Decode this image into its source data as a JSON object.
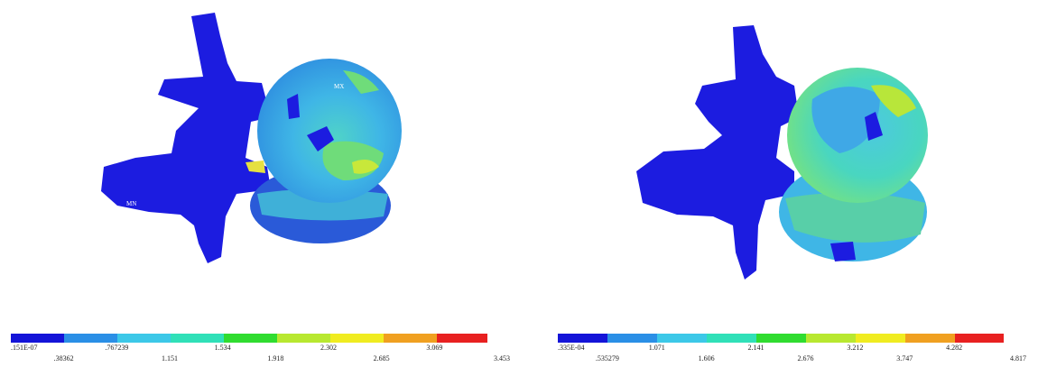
{
  "panels": [
    {
      "max_label": "MX",
      "min_label": "MN",
      "legend_labels": [
        ".151E-07",
        ".38362",
        ".767239",
        "1.151",
        "1.534",
        "1.918",
        "2.302",
        "2.685",
        "3.069",
        "3.453"
      ]
    },
    {
      "legend_labels": [
        ".335E-04",
        ".535279",
        "1.071",
        "1.606",
        "2.141",
        "2.676",
        "3.212",
        "3.747",
        "4.282",
        "4.817"
      ]
    }
  ]
}
